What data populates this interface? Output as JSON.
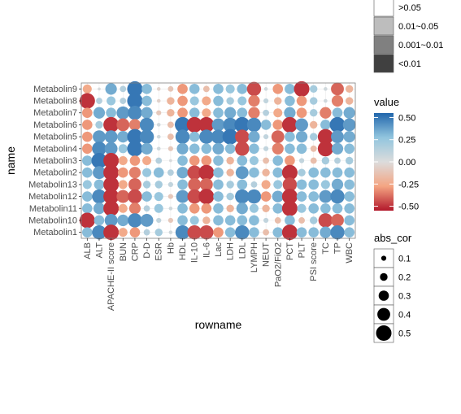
{
  "chart_data": {
    "type": "heatmap",
    "title": "",
    "xlabel": "rowname",
    "ylabel": "name",
    "x": [
      "ALB",
      "ALT",
      "APACHE-II score",
      "BUN",
      "CRP",
      "D-D",
      "ESR",
      "Hb",
      "HDL",
      "IL-10",
      "IL-6",
      "Lac",
      "LDH",
      "LDL",
      "LYMPH",
      "NEUT",
      "PaO2/FiO2",
      "PCT",
      "PLT",
      "PSI score",
      "TC",
      "TP",
      "WBC"
    ],
    "y": [
      "Metabolin9",
      "Metabolin8",
      "Metabolin7",
      "Metabolin6",
      "Metabolin5",
      "Metabolin4",
      "Metabolin3",
      "Metabolin2",
      "Metabolin13",
      "Metabolin12",
      "Metabolin11",
      "Metabolin10",
      "Metabolin1"
    ],
    "values": [
      [
        -0.25,
        0.02,
        0.35,
        0.15,
        0.5,
        0.3,
        -0.05,
        -0.12,
        -0.3,
        0.3,
        -0.15,
        0.3,
        0.25,
        0.3,
        -0.45,
        0.05,
        -0.3,
        0.3,
        -0.5,
        0.2,
        0.05,
        -0.4,
        -0.2
      ],
      [
        -0.5,
        0.15,
        0.25,
        0.15,
        0.5,
        0.3,
        -0.05,
        -0.2,
        -0.3,
        0.25,
        -0.25,
        0.3,
        0.2,
        0.25,
        -0.35,
        0.1,
        -0.2,
        0.3,
        -0.3,
        0.2,
        0.05,
        -0.35,
        -0.2
      ],
      [
        -0.3,
        0.35,
        0.3,
        0.4,
        0.45,
        0.35,
        -0.1,
        -0.2,
        -0.3,
        0.3,
        -0.25,
        0.3,
        0.35,
        0.3,
        -0.35,
        0.15,
        -0.25,
        0.35,
        -0.3,
        0.2,
        -0.35,
        0.3,
        0.35
      ],
      [
        -0.3,
        0.2,
        -0.5,
        -0.4,
        -0.35,
        0.45,
        0.05,
        -0.15,
        0.5,
        -0.5,
        -0.5,
        0.4,
        0.45,
        0.5,
        0.45,
        0.3,
        -0.3,
        -0.5,
        0.4,
        -0.2,
        0.3,
        0.5,
        0.4
      ],
      [
        -0.3,
        0.4,
        0.4,
        0.35,
        0.5,
        0.45,
        0.05,
        -0.15,
        0.45,
        0.3,
        0.45,
        0.45,
        0.5,
        -0.45,
        0.35,
        0.1,
        -0.4,
        0.3,
        0.35,
        0.2,
        -0.5,
        0.4,
        0.35
      ],
      [
        -0.3,
        0.45,
        0.4,
        0.25,
        0.5,
        0.35,
        0.05,
        -0.1,
        0.35,
        0.3,
        0.3,
        0.35,
        0.3,
        -0.45,
        0.3,
        0.1,
        -0.35,
        0.3,
        0.3,
        -0.15,
        -0.5,
        0.35,
        0.3
      ],
      [
        0.3,
        0.5,
        -0.5,
        -0.25,
        -0.3,
        -0.25,
        0.15,
        0.02,
        0.3,
        -0.3,
        -0.3,
        0.3,
        -0.2,
        0.3,
        0.25,
        -0.15,
        0.3,
        -0.3,
        0.1,
        -0.15,
        0.2,
        0.15,
        0.2
      ],
      [
        0.3,
        0.4,
        -0.5,
        -0.3,
        -0.35,
        0.25,
        0.3,
        0.15,
        0.35,
        -0.45,
        -0.5,
        0.3,
        -0.2,
        0.4,
        0.3,
        -0.2,
        0.3,
        -0.5,
        0.2,
        0.3,
        0.3,
        0.3,
        0.3
      ],
      [
        0.25,
        0.3,
        -0.5,
        -0.25,
        -0.4,
        0.2,
        0.2,
        0.1,
        0.3,
        -0.4,
        -0.4,
        0.3,
        0.2,
        0.3,
        0.15,
        -0.25,
        0.25,
        -0.45,
        0.3,
        0.3,
        0.25,
        0.35,
        0.3
      ],
      [
        0.3,
        0.45,
        -0.5,
        -0.4,
        -0.45,
        0.3,
        0.25,
        -0.1,
        0.4,
        -0.45,
        -0.5,
        0.3,
        0.2,
        0.45,
        0.45,
        -0.3,
        0.35,
        -0.5,
        0.3,
        0.3,
        0.4,
        0.45,
        0.3
      ],
      [
        0.3,
        0.35,
        -0.5,
        -0.25,
        -0.35,
        0.15,
        0.25,
        0.05,
        0.3,
        -0.3,
        -0.3,
        0.3,
        -0.2,
        0.35,
        0.25,
        -0.2,
        0.3,
        -0.5,
        0.25,
        0.3,
        0.3,
        0.3,
        0.3
      ],
      [
        -0.5,
        0.3,
        0.4,
        0.35,
        0.45,
        0.4,
        0.1,
        -0.1,
        0.3,
        0.25,
        -0.2,
        0.3,
        0.3,
        0.3,
        0.3,
        0.1,
        -0.15,
        0.3,
        -0.15,
        0.2,
        -0.45,
        -0.4,
        0.3
      ],
      [
        0.3,
        0.45,
        -0.5,
        -0.25,
        -0.3,
        0.15,
        0.2,
        0.05,
        0.45,
        -0.45,
        -0.45,
        -0.3,
        0.3,
        0.45,
        0.3,
        -0.15,
        0.3,
        -0.5,
        0.3,
        0.3,
        0.35,
        0.45,
        0.3
      ]
    ],
    "xlim": [
      0.5,
      23.5
    ],
    "ylim": [
      0.5,
      13.5
    ],
    "grid": true,
    "legends": [
      {
        "title": "",
        "kind": "p-value",
        "entries": [
          ">0.05",
          "0.01~0.05",
          "0.001~0.01",
          "<0.01"
        ],
        "colors": [
          "#ffffff",
          "#bdbdbd",
          "#808080",
          "#404040"
        ]
      },
      {
        "title": "value",
        "kind": "colorbar",
        "ticks": [
          "0.50",
          "0.25",
          "0.00",
          "-0.25",
          "-0.50"
        ],
        "range": [
          -0.55,
          0.55
        ],
        "colors": [
          "#b2182b",
          "#f4a582",
          "#dcdcdc",
          "#92c5de",
          "#2166ac"
        ]
      },
      {
        "title": "abs_cor",
        "kind": "size",
        "entries": [
          "0.1",
          "0.2",
          "0.3",
          "0.4",
          "0.5"
        ]
      }
    ]
  }
}
